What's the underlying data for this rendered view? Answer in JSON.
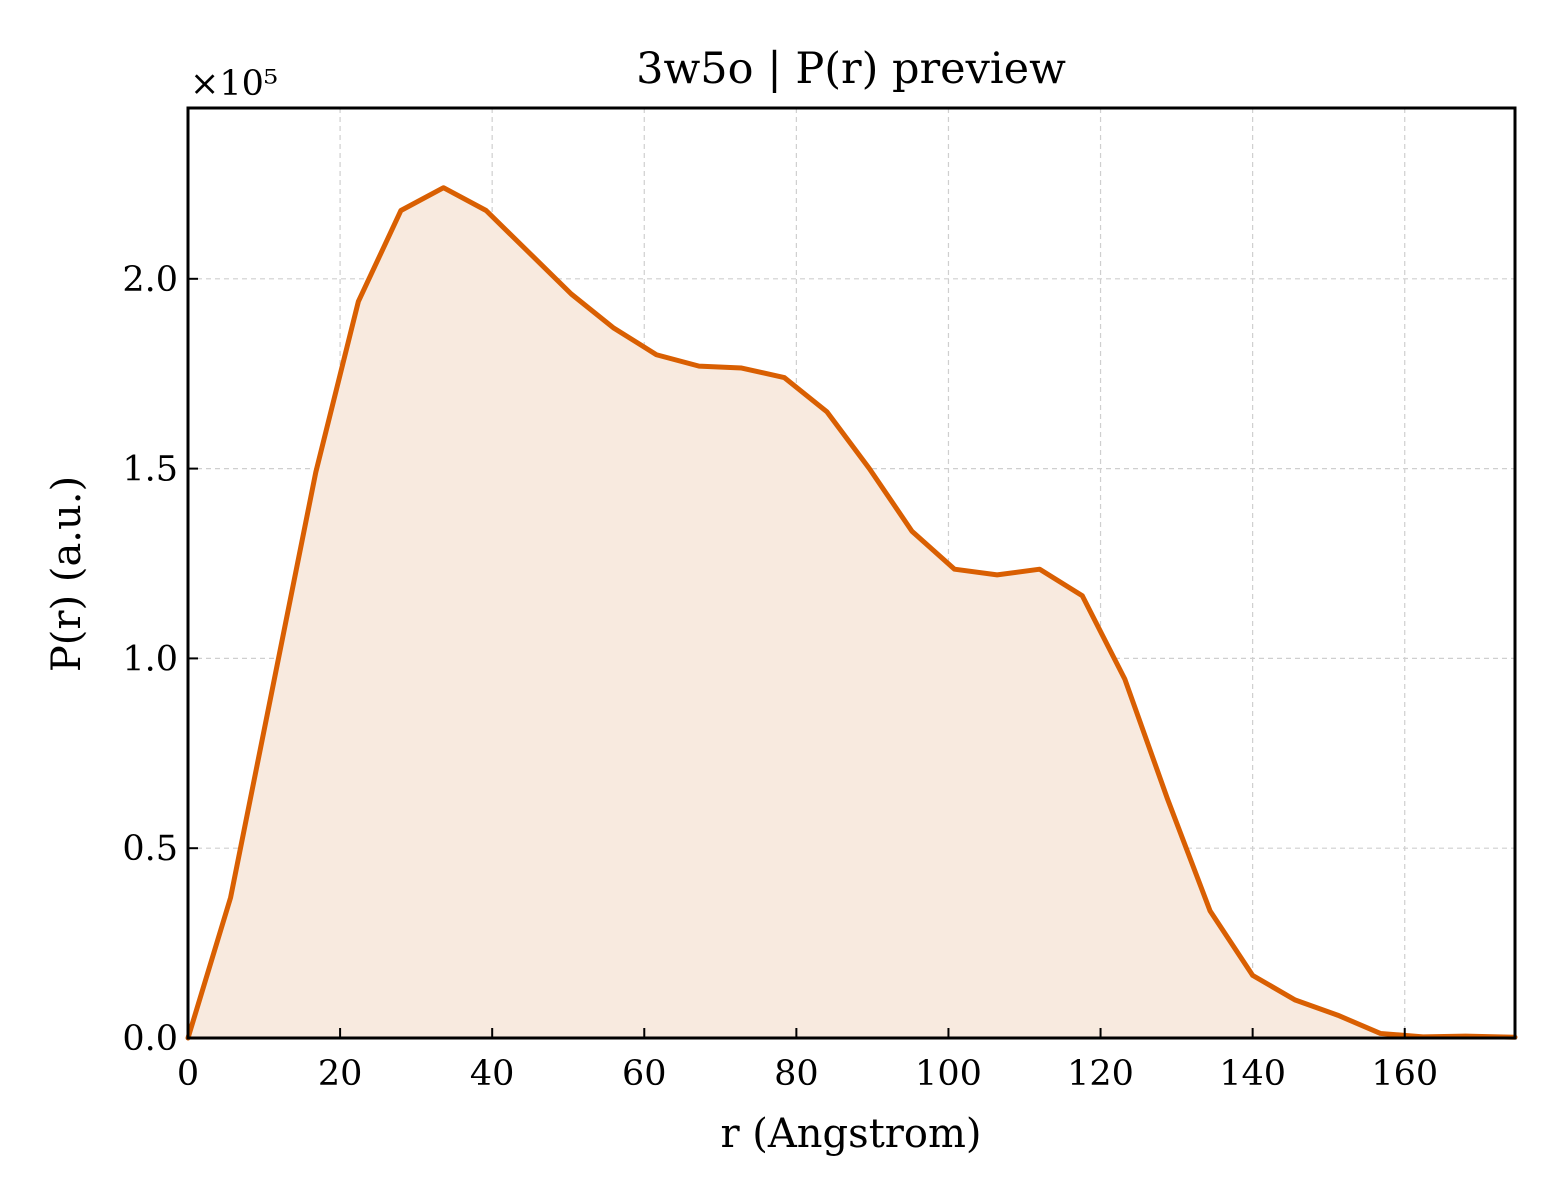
{
  "chart_data": {
    "type": "area",
    "title": "3w5o | P(r) preview",
    "xlabel": "r (Angstrom)",
    "ylabel": "P(r) (a.u.)",
    "y_multiplier": "×10⁵",
    "xlim": [
      0,
      174.5
    ],
    "ylim": [
      0,
      2.45
    ],
    "xticks": [
      0,
      20,
      40,
      60,
      80,
      100,
      120,
      140,
      160
    ],
    "xtick_labels": [
      "0",
      "20",
      "40",
      "60",
      "80",
      "100",
      "120",
      "140",
      "160"
    ],
    "yticks": [
      0,
      0.5,
      1.0,
      1.5,
      2.0
    ],
    "ytick_labels": [
      "0.0",
      "0.5",
      "1.0",
      "1.5",
      "2.0"
    ],
    "grid": true,
    "line_color": "#d95f02",
    "fill_color": "#f8eadf",
    "series": [
      {
        "x": [
          0,
          5.6,
          11.2,
          16.8,
          22.4,
          28.0,
          33.6,
          39.2,
          44.8,
          50.4,
          56.0,
          61.6,
          67.2,
          72.8,
          78.4,
          84.0,
          89.6,
          95.2,
          100.8,
          106.4,
          112.0,
          117.6,
          123.2,
          128.8,
          134.4,
          140.0,
          145.6,
          151.2,
          156.8,
          162.4,
          168.0,
          174.5
        ],
        "values": [
          0.0,
          0.37,
          0.93,
          1.49,
          1.94,
          2.18,
          2.24,
          2.18,
          2.07,
          1.96,
          1.87,
          1.8,
          1.77,
          1.765,
          1.74,
          1.65,
          1.5,
          1.335,
          1.235,
          1.22,
          1.235,
          1.165,
          0.945,
          0.63,
          0.335,
          0.165,
          0.1,
          0.06,
          0.012,
          0.003,
          0.005,
          0.002
        ]
      }
    ]
  }
}
